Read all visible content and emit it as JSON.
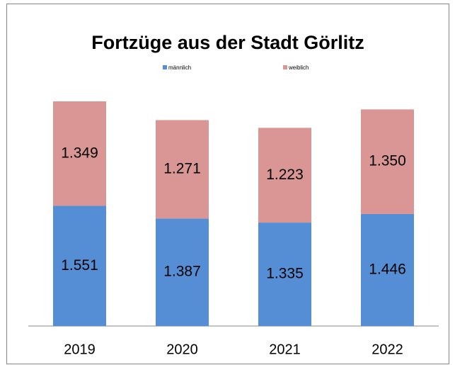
{
  "chart_data": {
    "type": "stacked_bar",
    "title": "Fortzüge aus der Stadt Görlitz",
    "categories": [
      "2019",
      "2020",
      "2021",
      "2022"
    ],
    "series": [
      {
        "name": "männlich",
        "color": "#558ed5",
        "values": [
          1551,
          1387,
          1335,
          1446
        ],
        "value_labels": [
          "1.551",
          "1.387",
          "1.335",
          "1.446"
        ]
      },
      {
        "name": "weiblich",
        "color": "#d99694",
        "values": [
          1349,
          1271,
          1223,
          1350
        ],
        "value_labels": [
          "1.349",
          "1.271",
          "1.223",
          "1.350"
        ]
      }
    ]
  }
}
